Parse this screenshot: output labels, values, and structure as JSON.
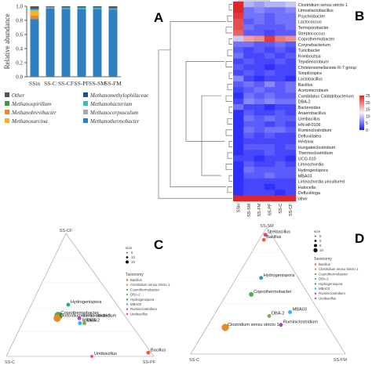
{
  "panel_labels": {
    "a": "A",
    "b": "B",
    "c": "C",
    "d": "D"
  },
  "chart_data": [
    {
      "panel": "A",
      "type": "bar",
      "stacked": true,
      "ylabel": "Relative abundance",
      "ylim": [
        0,
        1
      ],
      "yticks": [
        "0.0",
        "0.2",
        "0.4",
        "0.6",
        "0.8",
        "1.0"
      ],
      "categories": [
        "SSin",
        "SS-C",
        "SS-CF",
        "SS-PF",
        "SS-SM",
        "SS-FM"
      ],
      "series": [
        {
          "name": "Methanothermobacter",
          "color": "#2f7fc1",
          "values": [
            0.82,
            0.97,
            0.96,
            0.96,
            0.96,
            0.95
          ]
        },
        {
          "name": "Methanobrevibacter",
          "color": "#e8892b",
          "values": [
            0.05,
            0.0,
            0.0,
            0.0,
            0.0,
            0.0
          ]
        },
        {
          "name": "Methanosarcina",
          "color": "#f2b32b",
          "values": [
            0.07,
            0.0,
            0.0,
            0.0,
            0.0,
            0.0
          ]
        },
        {
          "name": "Methanospirillum",
          "color": "#3f9b3a",
          "values": [
            0.0,
            0.0,
            0.0,
            0.0,
            0.0,
            0.0
          ]
        },
        {
          "name": "Methanobacterium",
          "color": "#3db8c7",
          "values": [
            0.02,
            0.02,
            0.02,
            0.02,
            0.02,
            0.02
          ]
        },
        {
          "name": "Methanomethylophilaceae",
          "color": "#1f4e8c",
          "values": [
            0.0,
            0.0,
            0.0,
            0.0,
            0.0,
            0.0
          ]
        },
        {
          "name": "Methanocorpusculum",
          "color": "#a9a9a9",
          "values": [
            0.0,
            0.0,
            0.0,
            0.0,
            0.0,
            0.0
          ]
        },
        {
          "name": "Other",
          "color": "#555555",
          "values": [
            0.04,
            0.01,
            0.02,
            0.02,
            0.02,
            0.03
          ]
        }
      ],
      "legend": [
        {
          "name": "Other",
          "color": "#555555"
        },
        {
          "name": "Methanomethylophilaceae",
          "color": "#1f4e8c"
        },
        {
          "name": "Methanospirillum",
          "color": "#3f9b3a"
        },
        {
          "name": "Methanobacterium",
          "color": "#3db8c7"
        },
        {
          "name": "Methanobrevibacter",
          "color": "#e8892b"
        },
        {
          "name": "Methanocorpusculum",
          "color": "#a9a9a9"
        },
        {
          "name": "Methanosarcina",
          "color": "#f2b32b"
        },
        {
          "name": "Methanothermobacter",
          "color": "#2f7fc1"
        }
      ]
    },
    {
      "panel": "B",
      "type": "heatmap",
      "columns": [
        "SSin",
        "SS-SM",
        "SS-FM",
        "SS-PF",
        "SS-C",
        "SS-CF"
      ],
      "color_scale": {
        "low": "#1a1aff",
        "mid": "#f5f5f5",
        "high": "#e0262b"
      },
      "colorbar_ticks": [
        "25",
        "20",
        "15",
        "10",
        "5",
        "0"
      ],
      "rows": [
        {
          "name": "Clostridium sensu stricto 1",
          "values": [
            1.5,
            -0.3,
            -0.4,
            -0.3,
            -0.3,
            -0.2
          ]
        },
        {
          "name": "Limosilactobacillus",
          "values": [
            1.0,
            -0.6,
            -0.5,
            -0.6,
            -0.6,
            -0.5
          ]
        },
        {
          "name": "Psychrobacter",
          "values": [
            0.9,
            -0.6,
            -0.6,
            -0.7,
            -0.6,
            -0.6
          ]
        },
        {
          "name": "Lactococcus",
          "values": [
            0.8,
            -0.7,
            -0.6,
            -0.7,
            -0.6,
            -0.6
          ]
        },
        {
          "name": "Terrisporobacter",
          "values": [
            0.8,
            -0.6,
            -0.7,
            -0.7,
            -0.7,
            -0.6
          ]
        },
        {
          "name": "Streptococcus",
          "values": [
            0.7,
            -0.7,
            -0.7,
            -0.8,
            -0.7,
            -0.7
          ]
        },
        {
          "name": "Coprothermobacter",
          "values": [
            -0.2,
            0.4,
            0.5,
            0.9,
            0.6,
            0.5
          ]
        },
        {
          "name": "Corynebacterium",
          "values": [
            -0.6,
            -0.6,
            -0.7,
            -0.7,
            -0.6,
            -0.7
          ]
        },
        {
          "name": "Turicibacter",
          "values": [
            -0.7,
            -0.8,
            -0.7,
            -0.8,
            -0.7,
            -0.8
          ]
        },
        {
          "name": "Romboutsia",
          "values": [
            -0.6,
            -0.8,
            -0.8,
            -0.7,
            -0.8,
            -0.7
          ]
        },
        {
          "name": "Tepidimicrobium",
          "values": [
            -0.8,
            -0.7,
            -0.8,
            -0.8,
            -0.7,
            -0.8
          ]
        },
        {
          "name": "Christensenellaceae R-7 group",
          "values": [
            -0.7,
            -0.8,
            -0.8,
            -0.9,
            -0.8,
            -0.8
          ]
        },
        {
          "name": "Simplicispira",
          "values": [
            -0.8,
            -0.7,
            -0.8,
            -0.7,
            -0.8,
            -0.8
          ]
        },
        {
          "name": "Lactobacillus",
          "values": [
            -0.5,
            -0.8,
            -0.9,
            -0.8,
            -0.8,
            -0.9
          ]
        },
        {
          "name": "Bacillus",
          "values": [
            -0.7,
            -0.6,
            -0.7,
            -0.5,
            -0.7,
            -0.6
          ]
        },
        {
          "name": "Acetomicrobium",
          "values": [
            -0.8,
            -0.7,
            -0.6,
            -0.7,
            -0.7,
            -0.6
          ]
        },
        {
          "name": "Candidatus Caldatribacterium",
          "values": [
            -0.9,
            -0.6,
            -0.7,
            -0.6,
            -0.7,
            -0.7
          ]
        },
        {
          "name": "DBA-2",
          "values": [
            -0.8,
            -0.5,
            -0.6,
            -0.5,
            -0.6,
            -0.6
          ]
        },
        {
          "name": "Bacteroides",
          "values": [
            -0.6,
            -0.8,
            -0.8,
            -0.9,
            -0.8,
            -0.8
          ]
        },
        {
          "name": "Anaerobacillus",
          "values": [
            -0.9,
            -0.7,
            -0.8,
            -0.8,
            -0.7,
            -0.8
          ]
        },
        {
          "name": "Ureibacillus",
          "values": [
            -0.9,
            -0.6,
            -0.7,
            -0.6,
            -0.7,
            -0.7
          ]
        },
        {
          "name": "HN-HF0106",
          "values": [
            -0.9,
            -0.7,
            -0.7,
            -0.8,
            -0.7,
            -0.8
          ]
        },
        {
          "name": "Ruminiclostridium",
          "values": [
            -0.9,
            -0.6,
            -0.7,
            -0.6,
            -0.6,
            -0.7
          ]
        },
        {
          "name": "Defluviitalea",
          "values": [
            -0.9,
            -0.7,
            -0.8,
            -0.7,
            -0.8,
            -0.8
          ]
        },
        {
          "name": "Herbinix",
          "values": [
            -0.9,
            -0.8,
            -0.8,
            -0.8,
            -0.8,
            -0.8
          ]
        },
        {
          "name": "Hungateiclostridium",
          "values": [
            -0.9,
            -0.7,
            -0.7,
            -0.7,
            -0.8,
            -0.7
          ]
        },
        {
          "name": "Thermoclostridium",
          "values": [
            -0.9,
            -0.8,
            -0.8,
            -0.7,
            -0.8,
            -0.8
          ]
        },
        {
          "name": "UCG-010",
          "values": [
            -0.8,
            -0.8,
            -0.9,
            -0.8,
            -0.8,
            -0.9
          ]
        },
        {
          "name": "Limnochordia",
          "values": [
            -0.9,
            -0.7,
            -0.8,
            -0.8,
            -0.7,
            -0.8
          ]
        },
        {
          "name": "Hydrogenispora",
          "values": [
            -0.9,
            -0.6,
            -0.7,
            -0.7,
            -0.7,
            -0.7
          ]
        },
        {
          "name": "MBA03",
          "values": [
            -0.9,
            -0.7,
            -0.7,
            -0.6,
            -0.7,
            -0.7
          ]
        },
        {
          "name": "Limnochordia uncultured",
          "values": [
            -0.9,
            -0.8,
            -0.8,
            -0.8,
            -0.8,
            -0.8
          ]
        },
        {
          "name": "Halocella",
          "values": [
            -0.9,
            -0.8,
            -0.8,
            -0.9,
            -0.8,
            -0.8
          ]
        },
        {
          "name": "Defluviitoga",
          "values": [
            -0.9,
            -0.8,
            -0.8,
            -0.8,
            -0.9,
            -0.8
          ]
        },
        {
          "name": "other",
          "values": [
            1.0,
            1.0,
            1.0,
            1.0,
            1.0,
            1.0
          ]
        }
      ]
    },
    {
      "panel": "C",
      "type": "scatter",
      "ternary": true,
      "vertices": {
        "top": "SS-CF",
        "left": "SS-C",
        "right": "SS-PF"
      },
      "size_title": "size",
      "size_values": [
        "5",
        "10",
        "15"
      ],
      "legend_title": "Taxonomy",
      "legend": [
        {
          "name": "Bacillus",
          "color": "#e8603c"
        },
        {
          "name": "Clostridium sensu stricto 1",
          "color": "#e8892b"
        },
        {
          "name": "Coprothermobacter",
          "color": "#4caf50"
        },
        {
          "name": "DBA-2",
          "color": "#7cb342"
        },
        {
          "name": "Hydrogenispora",
          "color": "#26a69a"
        },
        {
          "name": "MBA03",
          "color": "#29b6f6"
        },
        {
          "name": "Ruminiclostridium",
          "color": "#ab47bc"
        },
        {
          "name": "Ureibacillus",
          "color": "#ec407a"
        }
      ],
      "points": [
        {
          "name": "Hydrogenispora",
          "a": 0.42,
          "b": 0.33,
          "c": 0.25,
          "size": 3
        },
        {
          "name": "Coprothermobacter",
          "a": 0.33,
          "b": 0.45,
          "c": 0.22,
          "size": 8
        },
        {
          "name": "Clostridium sensu stricto 1",
          "a": 0.31,
          "b": 0.47,
          "c": 0.22,
          "size": 7
        },
        {
          "name": "Ruminiclostridium",
          "a": 0.31,
          "b": 0.32,
          "c": 0.37,
          "size": 3
        },
        {
          "name": "DBA-2",
          "a": 0.27,
          "b": 0.31,
          "c": 0.42,
          "size": 3
        },
        {
          "name": "MBA03",
          "a": 0.27,
          "b": 0.34,
          "c": 0.39,
          "size": 3
        },
        {
          "name": "Ureibacillus",
          "a": 0.0,
          "b": 0.42,
          "c": 0.58,
          "size": 2
        },
        {
          "name": "Bacillus",
          "a": 0.03,
          "b": 0.02,
          "c": 0.95,
          "size": 3
        }
      ]
    },
    {
      "panel": "D",
      "type": "scatter",
      "ternary": true,
      "vertices": {
        "top": "SS-SM",
        "left": "SS-C",
        "right": "SS-FM"
      },
      "size_title": "size",
      "size_values": [
        "5",
        "6",
        "8",
        "10"
      ],
      "legend_title": "Taxonomy",
      "legend": [
        {
          "name": "Bacillus",
          "color": "#e8603c"
        },
        {
          "name": "Clostridium sensu stricto 1",
          "color": "#e8892b"
        },
        {
          "name": "Coprothermobacter",
          "color": "#4caf50"
        },
        {
          "name": "DBA-2",
          "color": "#7cb342"
        },
        {
          "name": "Hydrogenispora",
          "color": "#26a69a"
        },
        {
          "name": "MBA03",
          "color": "#29b6f6"
        },
        {
          "name": "Ruminiclostridium",
          "color": "#ab47bc"
        },
        {
          "name": "Ureibacillus",
          "color": "#ec407a"
        }
      ],
      "points": [
        {
          "name": "Ureibacillus",
          "a": 0.94,
          "b": 0.04,
          "c": 0.02,
          "size": 3
        },
        {
          "name": "Bacillus",
          "a": 0.9,
          "b": 0.07,
          "c": 0.03,
          "size": 3
        },
        {
          "name": "Hydrogenispora",
          "a": 0.6,
          "b": 0.24,
          "c": 0.16,
          "size": 3
        },
        {
          "name": "Coprothermobacter",
          "a": 0.47,
          "b": 0.37,
          "c": 0.16,
          "size": 4
        },
        {
          "name": "MBA03",
          "a": 0.33,
          "b": 0.19,
          "c": 0.48,
          "size": 3
        },
        {
          "name": "DBA-2",
          "a": 0.3,
          "b": 0.34,
          "c": 0.36,
          "size": 3
        },
        {
          "name": "Ruminiclostridium",
          "a": 0.23,
          "b": 0.3,
          "c": 0.47,
          "size": 3
        },
        {
          "name": "Clostridium sensu stricto 1",
          "a": 0.21,
          "b": 0.67,
          "c": 0.12,
          "size": 7
        }
      ]
    }
  ]
}
